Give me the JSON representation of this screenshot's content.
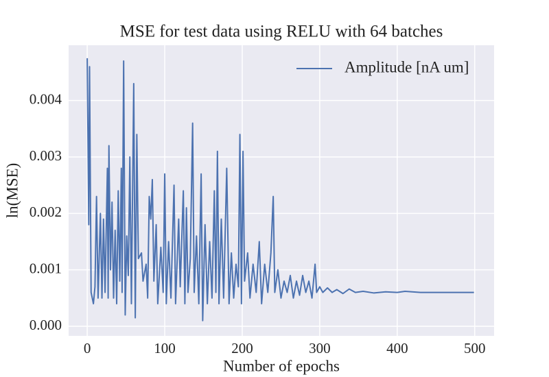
{
  "chart_data": {
    "type": "line",
    "title": "MSE for test data using RELU with 64 batches",
    "xlabel": "Number of epochs",
    "ylabel": "ln(MSE)",
    "x": [
      0,
      2,
      3,
      5,
      8,
      10,
      12,
      14,
      17,
      19,
      21,
      23,
      26,
      27,
      28,
      30,
      32,
      34,
      36,
      38,
      40,
      42,
      44,
      45,
      47,
      49,
      51,
      53,
      55,
      57,
      60,
      62,
      64,
      66,
      70,
      72,
      76,
      78,
      80,
      82,
      84,
      86,
      89,
      91,
      95,
      98,
      100,
      102,
      105,
      108,
      112,
      114,
      118,
      120,
      124,
      126,
      128,
      130,
      133,
      136,
      138,
      141,
      144,
      147,
      149,
      152,
      155,
      158,
      161,
      164,
      166,
      168,
      170,
      173,
      176,
      180,
      183,
      186,
      189,
      192,
      195,
      197,
      199,
      201,
      203,
      207,
      210,
      214,
      218,
      222,
      225,
      229,
      233,
      237,
      240,
      242,
      246,
      250,
      254,
      258,
      262,
      266,
      270,
      274,
      278,
      282,
      286,
      290,
      294,
      296,
      300,
      304,
      310,
      316,
      322,
      330,
      338,
      346,
      356,
      370,
      385,
      400,
      410,
      430,
      460,
      499
    ],
    "series": [
      {
        "name": "Amplitude [nA um]",
        "color": "#4c72b0",
        "values": [
          0.00475,
          0.0018,
          0.0046,
          0.0006,
          0.0004,
          0.0007,
          0.0023,
          0.0005,
          0.002,
          0.0005,
          0.0019,
          0.0006,
          0.0028,
          0.0005,
          0.0032,
          0.001,
          0.0022,
          0.0005,
          0.0017,
          0.0004,
          0.0024,
          0.0008,
          0.0028,
          0.0006,
          0.0047,
          0.0002,
          0.0016,
          0.0009,
          0.003,
          0.0004,
          0.0043,
          0.00015,
          0.0034,
          0.0012,
          0.0013,
          0.0008,
          0.0011,
          0.0005,
          0.0023,
          0.0019,
          0.0026,
          0.0008,
          0.0018,
          0.0004,
          0.0014,
          0.0006,
          0.0027,
          0.0004,
          0.0015,
          0.0005,
          0.0025,
          0.0004,
          0.0019,
          0.0007,
          0.0024,
          0.0004,
          0.0021,
          0.0006,
          0.0012,
          0.0036,
          0.0006,
          0.0016,
          0.0004,
          0.0027,
          0.0001,
          0.0018,
          0.0004,
          0.0015,
          0.0005,
          0.0024,
          0.0006,
          0.0031,
          0.0004,
          0.0019,
          0.0005,
          0.0028,
          0.0004,
          0.0013,
          0.0005,
          0.0011,
          0.0007,
          0.0034,
          0.0004,
          0.0031,
          0.0008,
          0.0013,
          0.0005,
          0.0011,
          0.0006,
          0.0015,
          0.0004,
          0.0011,
          0.0006,
          0.0013,
          0.0023,
          0.0006,
          0.001,
          0.0005,
          0.0008,
          0.0006,
          0.0009,
          0.0005,
          0.0008,
          0.00055,
          0.0009,
          0.0006,
          0.0008,
          0.0005,
          0.0011,
          0.0006,
          0.0007,
          0.0006,
          0.00068,
          0.0006,
          0.00065,
          0.00058,
          0.00066,
          0.0006,
          0.00062,
          0.00059,
          0.00061,
          0.0006,
          0.00062,
          0.0006,
          0.0006,
          0.0006
        ]
      }
    ],
    "xlim": [
      -24,
      525
    ],
    "ylim": [
      -0.00017,
      0.00498
    ],
    "xticks": [
      0,
      100,
      200,
      300,
      400,
      500
    ],
    "yticks": [
      {
        "value": 0,
        "label": "0.000"
      },
      {
        "value": 0.001,
        "label": "0.001"
      },
      {
        "value": 0.002,
        "label": "0.002"
      },
      {
        "value": 0.003,
        "label": "0.003"
      },
      {
        "value": 0.004,
        "label": "0.004"
      }
    ],
    "grid": true,
    "legend": "upper right"
  }
}
